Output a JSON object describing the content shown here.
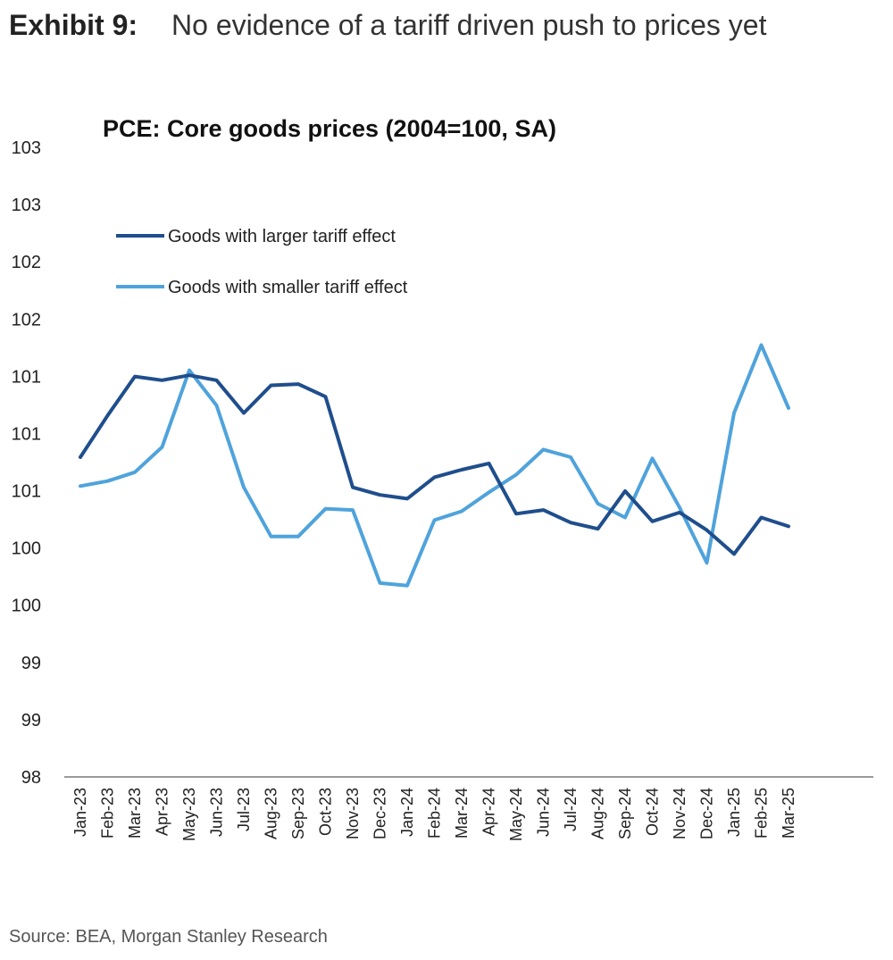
{
  "exhibit": {
    "label": "Exhibit 9:",
    "title": "No evidence of a tariff driven push to prices yet"
  },
  "source": "Source: BEA, Morgan Stanley Research",
  "chart_data": {
    "type": "line",
    "title": "PCE: Core goods prices (2004=100, SA)",
    "xlabel": "",
    "ylabel": "",
    "ylim": [
      98,
      103
    ],
    "y_tick_labels": [
      "103",
      "103",
      "102",
      "102",
      "101",
      "101",
      "101",
      "100",
      "100",
      "99",
      "99",
      "98"
    ],
    "grid": false,
    "legend_placement": "top-left",
    "categories": [
      "Jan-23",
      "Feb-23",
      "Mar-23",
      "Apr-23",
      "May-23",
      "Jun-23",
      "Jul-23",
      "Aug-23",
      "Sep-23",
      "Oct-23",
      "Nov-23",
      "Dec-23",
      "Jan-24",
      "Feb-24",
      "Mar-24",
      "Apr-24",
      "May-24",
      "Jun-24",
      "Jul-24",
      "Aug-24",
      "Sep-24",
      "Oct-24",
      "Nov-24",
      "Dec-24",
      "Jan-25",
      "Feb-25",
      "Mar-25"
    ],
    "series": [
      {
        "name": "Goods with larger tariff effect",
        "color": "#1f4e8c",
        "values": [
          100.54,
          100.87,
          101.18,
          101.15,
          101.19,
          101.15,
          100.89,
          101.11,
          101.12,
          101.02,
          100.3,
          100.24,
          100.21,
          100.38,
          100.44,
          100.49,
          100.09,
          100.12,
          100.02,
          99.97,
          100.27,
          100.03,
          100.1,
          99.96,
          99.77,
          100.06,
          99.99
        ],
        "markers": "none"
      },
      {
        "name": "Goods with smaller tariff effect",
        "color": "#4fa3dc",
        "values": [
          100.31,
          100.35,
          100.42,
          100.62,
          101.23,
          100.95,
          100.3,
          99.91,
          99.91,
          100.13,
          100.12,
          99.54,
          99.52,
          100.04,
          100.11,
          100.26,
          100.4,
          100.6,
          100.54,
          100.17,
          100.06,
          100.53,
          100.14,
          99.7,
          100.89,
          101.43,
          100.93
        ],
        "markers": "none"
      }
    ]
  }
}
